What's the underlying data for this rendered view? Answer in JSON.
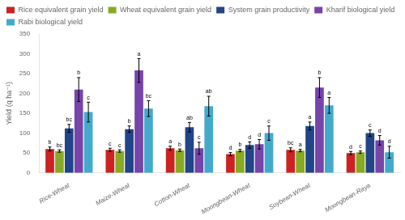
{
  "chart_data": {
    "type": "bar",
    "ylabel": "Yield (q ha⁻¹)",
    "categories": [
      "Rice-Wheat",
      "Maize-Wheat",
      "Cotton-Wheat",
      "Moongbean-Wheat",
      "Soybean-Wheat",
      "Moongbean-Raya"
    ],
    "series": [
      {
        "name": "Rice equivalent grain yield",
        "color": "#cc2222",
        "values": [
          60,
          58,
          62,
          47,
          58,
          50
        ],
        "errors": [
          5,
          4,
          5,
          4,
          5,
          4
        ],
        "labels": [
          "b",
          "c",
          "a",
          "d",
          "bc",
          "d"
        ]
      },
      {
        "name": "Wheat equivalent grain yield",
        "color": "#88aa22",
        "values": [
          55,
          55,
          57,
          56,
          56,
          52
        ],
        "errors": [
          3,
          3,
          3,
          3,
          3,
          3
        ],
        "labels": [
          "bc",
          "c",
          "b",
          "b",
          "a",
          "c"
        ]
      },
      {
        "name": "System grain productivity",
        "color": "#224488",
        "values": [
          112,
          110,
          115,
          70,
          118,
          100
        ],
        "errors": [
          10,
          8,
          12,
          8,
          10,
          8
        ],
        "labels": [
          "bc",
          "b",
          "ab",
          "d",
          "a",
          "c"
        ]
      },
      {
        "name": "Kharif biological yield",
        "color": "#7744aa",
        "values": [
          210,
          258,
          62,
          72,
          215,
          82
        ],
        "errors": [
          30,
          30,
          15,
          12,
          25,
          12
        ],
        "labels": [
          "b",
          "a",
          "c",
          "d",
          "b",
          "d"
        ]
      },
      {
        "name": "Rabi biological yield",
        "color": "#44aacc",
        "values": [
          153,
          162,
          168,
          100,
          170,
          52
        ],
        "errors": [
          25,
          20,
          25,
          18,
          20,
          15
        ],
        "labels": [
          "c",
          "bc",
          "ab",
          "c",
          "a",
          "d"
        ]
      }
    ],
    "ylim": [
      0,
      350
    ],
    "yticks": [
      0,
      50,
      100,
      150,
      200,
      250,
      300,
      350
    ],
    "grid": false,
    "legend": "top"
  }
}
